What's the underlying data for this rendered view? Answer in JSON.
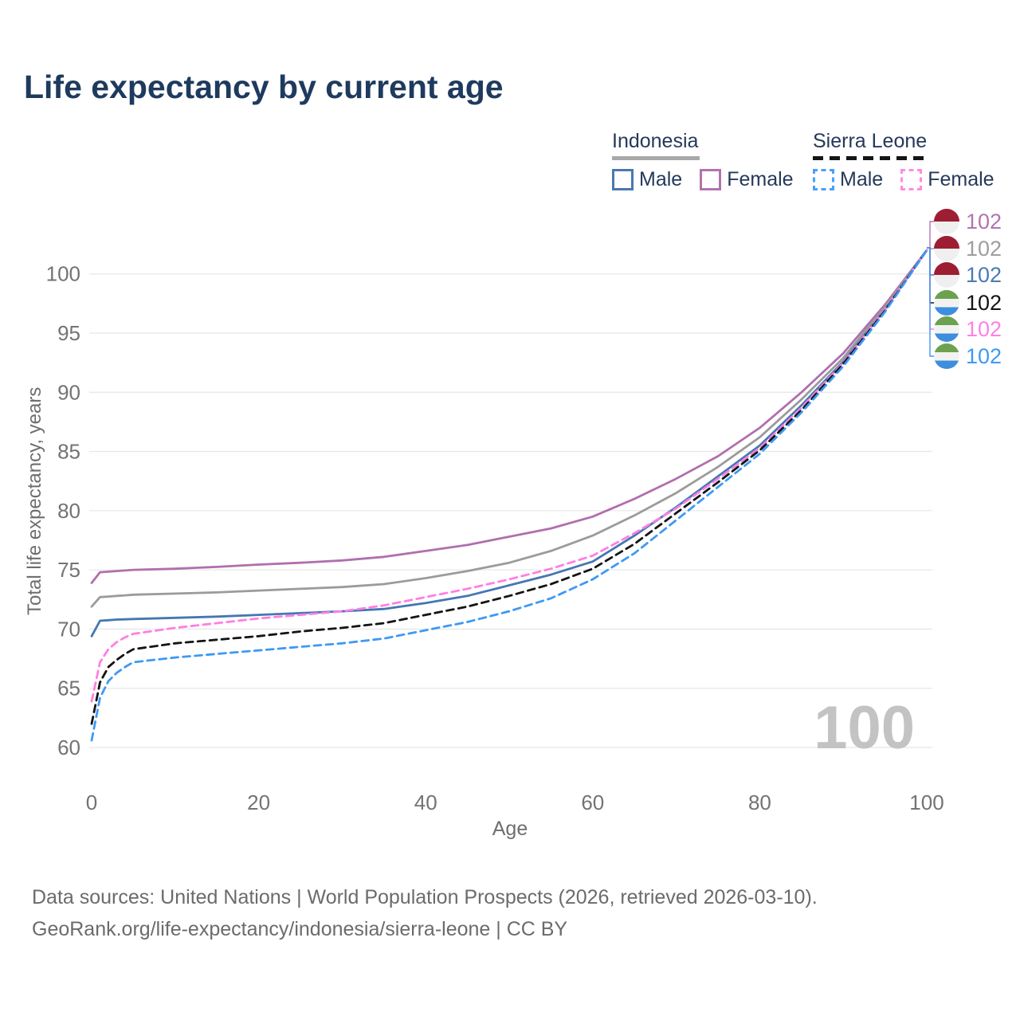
{
  "title": "Life expectancy by current age",
  "watermark": "100",
  "legend": {
    "groups": [
      {
        "id": "indonesia",
        "label": "Indonesia",
        "underline": "solid",
        "underline_color": "#a8a8a8",
        "items": [
          {
            "id": "indonesia-male",
            "label": "Male",
            "box_color": "#4a77b4",
            "box_style": "solid"
          },
          {
            "id": "indonesia-female",
            "label": "Female",
            "box_color": "#b273ae",
            "box_style": "solid"
          }
        ]
      },
      {
        "id": "sierra-leone",
        "label": "Sierra Leone",
        "underline": "dashed",
        "underline_color": "#151515",
        "items": [
          {
            "id": "sierra-leone-male",
            "label": "Male",
            "box_color": "#4aa0f7",
            "box_style": "dashed"
          },
          {
            "id": "sierra-leone-female",
            "label": "Female",
            "box_color": "#ff8ce0",
            "box_style": "dashed"
          }
        ]
      }
    ]
  },
  "flags": {
    "indonesia": [
      "#9d1d33",
      "#efefef"
    ],
    "sierra-leone": [
      "#6ca24f",
      "#f2f3f1",
      "#3e8ede"
    ]
  },
  "chart_data": {
    "type": "line",
    "title": "Life expectancy by current age",
    "xlabel": "Age",
    "ylabel": "Total life expectancy, years",
    "xlim": [
      0,
      100
    ],
    "ylim": [
      60,
      103
    ],
    "xticks": [
      0,
      20,
      40,
      60,
      80,
      100
    ],
    "yticks": [
      60,
      65,
      70,
      75,
      80,
      85,
      90,
      95,
      100
    ],
    "grid": "horizontal",
    "legend_position": "top-right",
    "x": [
      0,
      1,
      2,
      3,
      4,
      5,
      10,
      15,
      20,
      25,
      30,
      35,
      40,
      45,
      50,
      55,
      60,
      65,
      70,
      75,
      80,
      85,
      90,
      95,
      100
    ],
    "series": [
      {
        "id": "indonesia-female",
        "name": "Indonesia Female",
        "color": "#b06fae",
        "dashed": false,
        "values": [
          73.9,
          74.8,
          74.85,
          74.9,
          74.95,
          75.0,
          75.1,
          75.25,
          75.45,
          75.6,
          75.8,
          76.1,
          76.6,
          77.1,
          77.8,
          78.5,
          79.5,
          81.0,
          82.7,
          84.6,
          87.0,
          90.0,
          93.3,
          97.4,
          102
        ]
      },
      {
        "id": "indonesia-total",
        "name": "Indonesia (both sexes)",
        "color": "#9b9b9b",
        "dashed": false,
        "values": [
          71.9,
          72.7,
          72.75,
          72.8,
          72.85,
          72.9,
          73.0,
          73.1,
          73.25,
          73.4,
          73.55,
          73.8,
          74.3,
          74.9,
          75.6,
          76.6,
          77.9,
          79.6,
          81.5,
          83.7,
          86.2,
          89.4,
          92.9,
          97.2,
          102
        ]
      },
      {
        "id": "indonesia-male",
        "name": "Indonesia Male",
        "color": "#4477b3",
        "dashed": false,
        "values": [
          69.4,
          70.7,
          70.75,
          70.8,
          70.82,
          70.85,
          70.95,
          71.05,
          71.2,
          71.35,
          71.5,
          71.7,
          72.2,
          72.8,
          73.7,
          74.6,
          75.7,
          77.9,
          80.3,
          82.9,
          85.5,
          88.9,
          92.6,
          97.0,
          102
        ]
      },
      {
        "id": "sierra-leone-female",
        "name": "Sierra Leone Female",
        "color": "#ff7fe3",
        "dashed": true,
        "values": [
          63.9,
          67.2,
          68.3,
          68.9,
          69.3,
          69.6,
          70.1,
          70.5,
          70.9,
          71.2,
          71.5,
          72.0,
          72.7,
          73.4,
          74.2,
          75.1,
          76.2,
          78.1,
          80.2,
          82.7,
          85.3,
          88.7,
          92.5,
          97.0,
          102
        ]
      },
      {
        "id": "sierra-leone-total",
        "name": "Sierra Leone (both sexes)",
        "color": "#141414",
        "dashed": true,
        "values": [
          62.0,
          65.5,
          66.8,
          67.4,
          67.9,
          68.3,
          68.8,
          69.1,
          69.4,
          69.8,
          70.1,
          70.5,
          71.2,
          71.9,
          72.8,
          73.8,
          75.1,
          77.2,
          79.8,
          82.4,
          85.1,
          88.5,
          92.4,
          96.9,
          102
        ]
      },
      {
        "id": "sierra-leone-male",
        "name": "Sierra Leone Male",
        "color": "#3e99f5",
        "dashed": true,
        "values": [
          60.6,
          64.2,
          65.6,
          66.3,
          66.8,
          67.2,
          67.6,
          67.9,
          68.2,
          68.5,
          68.8,
          69.2,
          69.9,
          70.6,
          71.5,
          72.6,
          74.2,
          76.4,
          79.2,
          82.0,
          84.8,
          88.3,
          92.2,
          96.8,
          102
        ]
      }
    ],
    "end_labels": [
      {
        "series": "indonesia-female",
        "value": "102",
        "color": "#b274b2",
        "flag": "indonesia"
      },
      {
        "series": "indonesia-total",
        "value": "102",
        "color": "#9e9e9e",
        "flag": "indonesia"
      },
      {
        "series": "indonesia-male",
        "value": "102",
        "color": "#4a7ab8",
        "flag": "indonesia"
      },
      {
        "series": "sierra-leone-total",
        "value": "102",
        "color": "#141414",
        "flag": "sierra-leone"
      },
      {
        "series": "sierra-leone-female",
        "value": "102",
        "color": "#ff80e5",
        "flag": "sierra-leone"
      },
      {
        "series": "sierra-leone-male",
        "value": "102",
        "color": "#3e99f5",
        "flag": "sierra-leone"
      }
    ]
  },
  "footer": {
    "line1": "Data sources: United Nations | World Population Prospects (2026, retrieved 2026-03-10).",
    "line2": "GeoRank.org/life-expectancy/indonesia/sierra-leone | CC BY"
  }
}
